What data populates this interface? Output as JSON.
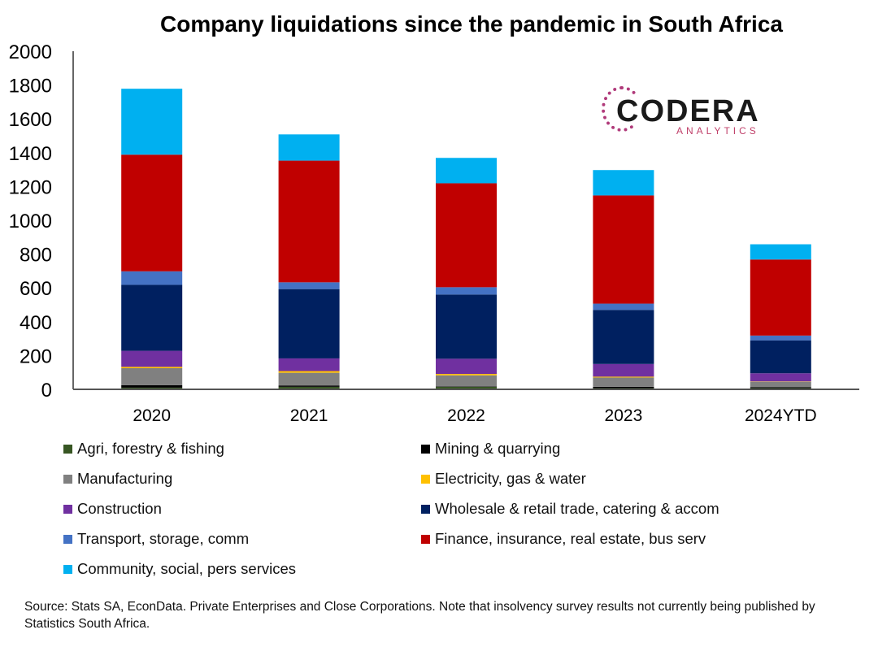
{
  "chart_data": {
    "type": "bar",
    "stacked": true,
    "title": "Company liquidations since the pandemic in South Africa",
    "xlabel": "",
    "ylabel": "",
    "ylim": [
      0,
      2000
    ],
    "yticks": [
      0,
      200,
      400,
      600,
      800,
      1000,
      1200,
      1400,
      1600,
      1800,
      2000
    ],
    "categories": [
      "2020",
      "2021",
      "2022",
      "2023",
      "2024YTD"
    ],
    "legend_position": "bottom",
    "series": [
      {
        "name": "Agri, forestry & fishing",
        "color": "#375623",
        "values": [
          10,
          15,
          15,
          7,
          7
        ]
      },
      {
        "name": "Mining & quarrying",
        "color": "#000000",
        "values": [
          15,
          8,
          3,
          8,
          5
        ]
      },
      {
        "name": "Manufacturing",
        "color": "#808080",
        "values": [
          100,
          75,
          65,
          55,
          33
        ]
      },
      {
        "name": "Electricity, gas & water",
        "color": "#FFC000",
        "values": [
          8,
          10,
          8,
          5,
          2
        ]
      },
      {
        "name": "Construction",
        "color": "#7030A0",
        "values": [
          95,
          75,
          90,
          75,
          48
        ]
      },
      {
        "name": "Wholesale & retail trade, catering & accom",
        "color": "#002060",
        "values": [
          390,
          410,
          380,
          320,
          195
        ]
      },
      {
        "name": "Transport, storage, comm",
        "color": "#4472C4",
        "values": [
          80,
          40,
          43,
          37,
          28
        ]
      },
      {
        "name": "Finance, insurance, real estate, bus serv",
        "color": "#C00000",
        "values": [
          690,
          720,
          615,
          640,
          450
        ]
      },
      {
        "name": "Community, social, pers services",
        "color": "#00B0F0",
        "values": [
          390,
          155,
          150,
          150,
          90
        ]
      }
    ]
  },
  "logo": {
    "main": "CODERA",
    "sub": "ANALYTICS"
  },
  "source": "Source: Stats SA, EconData. Private Enterprises and Close Corporations. Note that insolvency survey results not currently being published by Statistics South Africa."
}
